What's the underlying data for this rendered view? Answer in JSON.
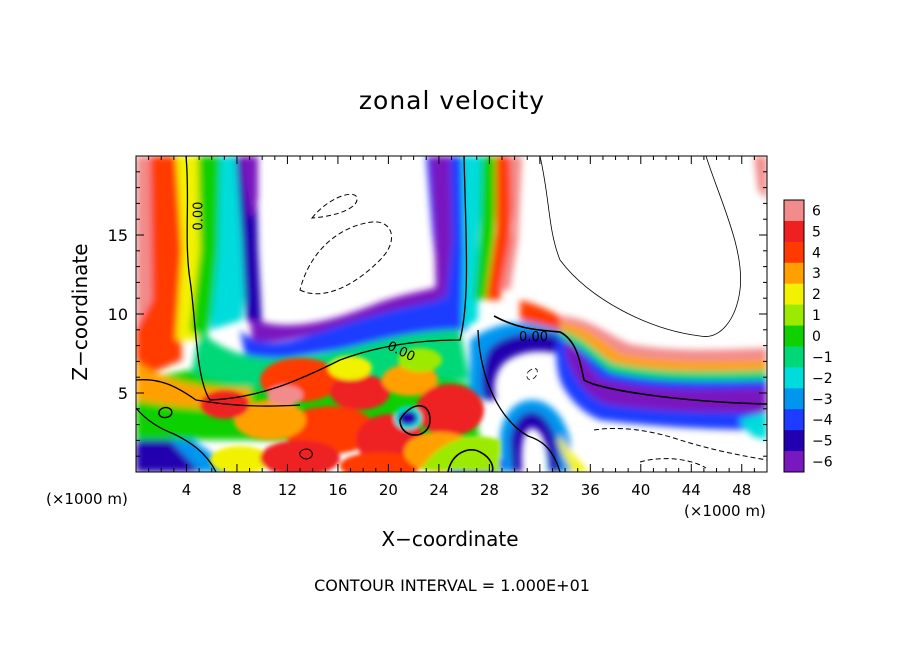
{
  "chart_data": {
    "type": "heatmap",
    "title": "zonal velocity",
    "xlabel": "X−coordinate",
    "ylabel": "Z−coordinate",
    "x_unit_left": "(×1000 m)",
    "x_unit_right": "(×1000 m)",
    "footnote": "CONTOUR INTERVAL = 1.000E+01",
    "xlim": [
      0,
      50
    ],
    "ylim": [
      0,
      20
    ],
    "x_ticks": [
      4,
      8,
      12,
      16,
      20,
      24,
      28,
      32,
      36,
      40,
      44,
      48
    ],
    "x_tick_labels": [
      "4",
      "8",
      "12",
      "16",
      "20",
      "24",
      "28",
      "32",
      "36",
      "40",
      "44",
      "48"
    ],
    "y_ticks": [
      5,
      10,
      15
    ],
    "y_tick_labels": [
      "5",
      "10",
      "15"
    ],
    "colorbar": {
      "levels": [
        6,
        5,
        4,
        3,
        2,
        1,
        0,
        -1,
        -2,
        -3,
        -4,
        -5,
        -6
      ],
      "labels": [
        "6",
        "5",
        "4",
        "3",
        "2",
        "1",
        "0",
        "−1",
        "−2",
        "−3",
        "−4",
        "−5",
        "−6"
      ],
      "colors": [
        "#f28c8c",
        "#ee2020",
        "#ff3a00",
        "#ffa000",
        "#f2f200",
        "#9cea00",
        "#10d000",
        "#00d878",
        "#00dcdc",
        "#0096f0",
        "#1e3cff",
        "#2200b0",
        "#7a18c0"
      ]
    },
    "contour_labels": [
      {
        "text": "0.00",
        "x": 5.0,
        "z": 16.2,
        "angle": -90
      },
      {
        "text": "0.00",
        "x": 21.0,
        "z": 7.6,
        "angle": 26
      },
      {
        "text": "0.00",
        "x": 31.5,
        "z": 8.5,
        "angle": 0
      }
    ],
    "main_features": {
      "left_edge_red_band_x": 1.5,
      "left_blue_column_x": [
        6,
        9
      ],
      "central_blue_column_x": [
        23.5,
        26
      ],
      "right_blue_band_z": 4.5,
      "negative_dashed_contour_center": [
        17.5,
        14
      ]
    }
  }
}
